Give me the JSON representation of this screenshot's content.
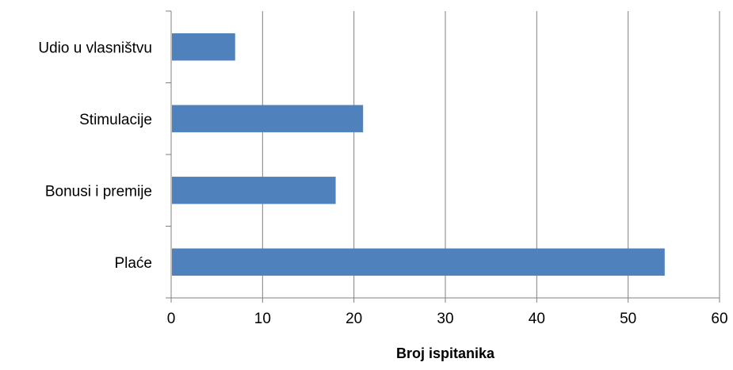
{
  "colors": {
    "bar": "#4f81bd",
    "grid": "#808080",
    "axis": "#808080",
    "text": "#000000"
  },
  "chart_data": {
    "type": "bar",
    "orientation": "horizontal",
    "categories": [
      "Udio u vlasništvu",
      "Stimulacije",
      "Bonusi i premije",
      "Plaće"
    ],
    "values": [
      7,
      21,
      18,
      54
    ],
    "title": "",
    "xlabel": "Broj ispitanika",
    "ylabel": "",
    "xlim": [
      0,
      60
    ],
    "xticks": [
      "0",
      "10",
      "20",
      "30",
      "40",
      "50",
      "60"
    ],
    "grid": "vertical",
    "legend": "none"
  }
}
